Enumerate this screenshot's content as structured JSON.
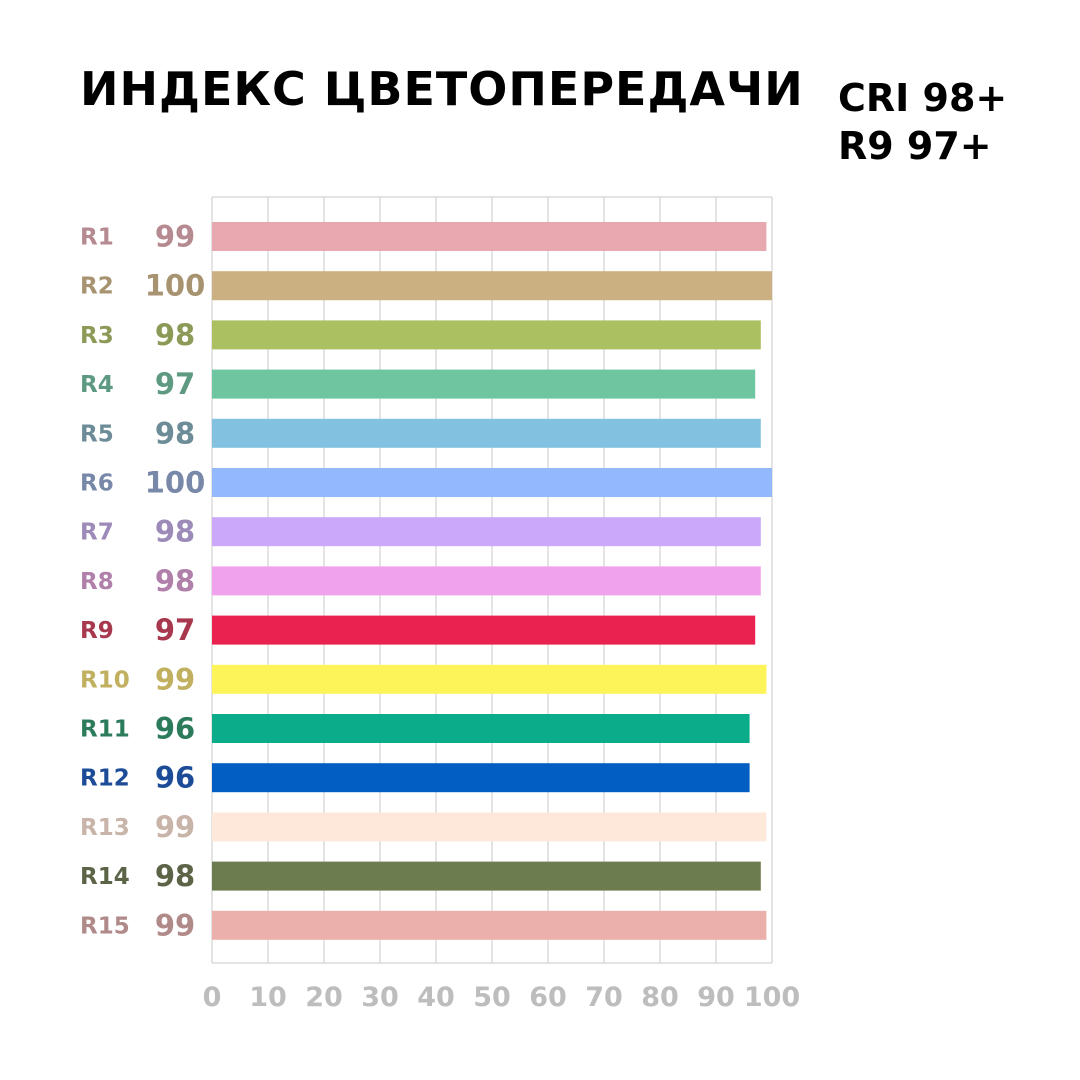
{
  "title": "ИНДЕКС ЦВЕТОПЕРЕДАЧИ",
  "specs": [
    "CRI 98+",
    "R9 97+"
  ],
  "chart_data": {
    "type": "bar",
    "orientation": "horizontal",
    "title": "ИНДЕКС ЦВЕТОПЕРЕДАЧИ",
    "xlim": [
      0,
      100
    ],
    "x_ticks": [
      "0",
      "10",
      "20",
      "30",
      "40",
      "50",
      "60",
      "70",
      "80",
      "90",
      "100"
    ],
    "grid": true,
    "categories": [
      "R1",
      "R2",
      "R3",
      "R4",
      "R5",
      "R6",
      "R7",
      "R8",
      "R9",
      "R10",
      "R11",
      "R12",
      "R13",
      "R14",
      "R15"
    ],
    "values": [
      99,
      100,
      98,
      97,
      98,
      100,
      98,
      98,
      97,
      99,
      96,
      96,
      99,
      98,
      99
    ],
    "bar_colors": [
      "#e8a8b0",
      "#cbb081",
      "#aac061",
      "#6ec6a0",
      "#82c2e0",
      "#94b8fc",
      "#cba8fa",
      "#f0a2ec",
      "#ea2250",
      "#fdf45a",
      "#0aac8a",
      "#025ec2",
      "#fee8da",
      "#6c7c4e",
      "#ecb0ac"
    ],
    "label_colors": [
      "#b58a90",
      "#a89370",
      "#8c9a58",
      "#5e9a82",
      "#6c8c98",
      "#7888a8",
      "#9c8ab8",
      "#b080aa",
      "#a8384e",
      "#c0b060",
      "#2c7c5c",
      "#1c4c98",
      "#c8b4a8",
      "#5c6448",
      "#b08a88"
    ]
  }
}
